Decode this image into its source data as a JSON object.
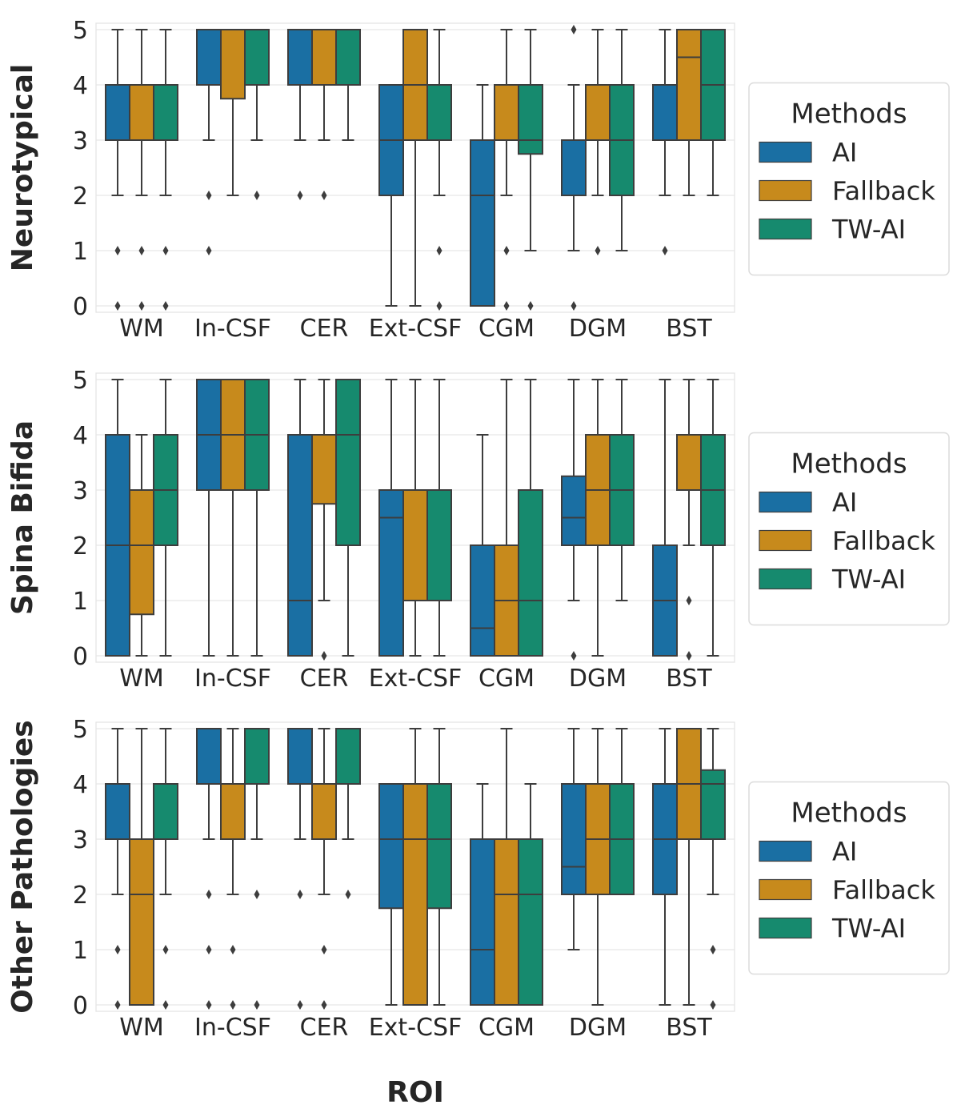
{
  "chart_data": {
    "type": "boxplot",
    "xlabel": "ROI",
    "categories": [
      "WM",
      "In-CSF",
      "CER",
      "Ext-CSF",
      "CGM",
      "DGM",
      "BST"
    ],
    "methods": [
      "AI",
      "Fallback",
      "TW-AI"
    ],
    "colors": {
      "AI": "#1a6fa3",
      "Fallback": "#c78a1c",
      "TW-AI": "#168a6e"
    },
    "ylim": [
      0,
      5
    ],
    "yticks": [
      "0",
      "1",
      "2",
      "3",
      "4",
      "5"
    ],
    "legend": {
      "title": "Methods",
      "placement": "right"
    },
    "panels": [
      {
        "title": "Neurotypical",
        "boxes": {
          "AI": [
            {
              "wl": 2,
              "q1": 3,
              "med": 3,
              "q3": 4,
              "wh": 5,
              "fl": [
                0,
                1
              ]
            },
            {
              "wl": 3,
              "q1": 4,
              "med": 5,
              "q3": 5,
              "wh": 5,
              "fl": [
                1,
                2
              ]
            },
            {
              "wl": 3,
              "q1": 4,
              "med": 5,
              "q3": 5,
              "wh": 5,
              "fl": [
                2
              ]
            },
            {
              "wl": 0,
              "q1": 2,
              "med": 3,
              "q3": 4,
              "wh": 4,
              "fl": []
            },
            {
              "wl": 0,
              "q1": 0,
              "med": 2,
              "q3": 3,
              "wh": 4,
              "fl": []
            },
            {
              "wl": 1,
              "q1": 2,
              "med": 3,
              "q3": 3,
              "wh": 4,
              "fl": [
                0,
                5
              ]
            },
            {
              "wl": 2,
              "q1": 3,
              "med": 4,
              "q3": 4,
              "wh": 5,
              "fl": [
                1
              ]
            }
          ],
          "Fallback": [
            {
              "wl": 2,
              "q1": 3,
              "med": 3,
              "q3": 4,
              "wh": 5,
              "fl": [
                0,
                1
              ]
            },
            {
              "wl": 2,
              "q1": 3.75,
              "med": 5,
              "q3": 5,
              "wh": 5,
              "fl": []
            },
            {
              "wl": 3,
              "q1": 4,
              "med": 5,
              "q3": 5,
              "wh": 5,
              "fl": [
                2
              ]
            },
            {
              "wl": 0,
              "q1": 3,
              "med": 4,
              "q3": 5,
              "wh": 5,
              "fl": []
            },
            {
              "wl": 2,
              "q1": 3,
              "med": 4,
              "q3": 4,
              "wh": 5,
              "fl": [
                0,
                1
              ]
            },
            {
              "wl": 2,
              "q1": 3,
              "med": 4,
              "q3": 4,
              "wh": 5,
              "fl": [
                1
              ]
            },
            {
              "wl": 2,
              "q1": 3,
              "med": 4.5,
              "q3": 5,
              "wh": 5,
              "fl": []
            }
          ],
          "TW-AI": [
            {
              "wl": 2,
              "q1": 3,
              "med": 3,
              "q3": 4,
              "wh": 5,
              "fl": [
                0,
                1
              ]
            },
            {
              "wl": 3,
              "q1": 4,
              "med": 5,
              "q3": 5,
              "wh": 5,
              "fl": [
                2
              ]
            },
            {
              "wl": 3,
              "q1": 4,
              "med": 5,
              "q3": 5,
              "wh": 5,
              "fl": []
            },
            {
              "wl": 2,
              "q1": 3,
              "med": 4,
              "q3": 4,
              "wh": 5,
              "fl": [
                0,
                1
              ]
            },
            {
              "wl": 1,
              "q1": 2.75,
              "med": 3,
              "q3": 4,
              "wh": 5,
              "fl": [
                0
              ]
            },
            {
              "wl": 1,
              "q1": 2,
              "med": 3,
              "q3": 4,
              "wh": 5,
              "fl": []
            },
            {
              "wl": 2,
              "q1": 3,
              "med": 4,
              "q3": 5,
              "wh": 5,
              "fl": []
            }
          ]
        }
      },
      {
        "title": "Spina Bifida",
        "boxes": {
          "AI": [
            {
              "wl": 0,
              "q1": 0,
              "med": 2,
              "q3": 4,
              "wh": 5,
              "fl": []
            },
            {
              "wl": 0,
              "q1": 3,
              "med": 4,
              "q3": 5,
              "wh": 5,
              "fl": []
            },
            {
              "wl": 0,
              "q1": 0,
              "med": 1,
              "q3": 4,
              "wh": 5,
              "fl": []
            },
            {
              "wl": 0,
              "q1": 0,
              "med": 2.5,
              "q3": 3,
              "wh": 5,
              "fl": []
            },
            {
              "wl": 0,
              "q1": 0,
              "med": 0.5,
              "q3": 2,
              "wh": 4,
              "fl": []
            },
            {
              "wl": 1,
              "q1": 2,
              "med": 2.5,
              "q3": 3.25,
              "wh": 5,
              "fl": [
                0
              ]
            },
            {
              "wl": 0,
              "q1": 0,
              "med": 1,
              "q3": 2,
              "wh": 5,
              "fl": []
            }
          ],
          "Fallback": [
            {
              "wl": 0,
              "q1": 0.75,
              "med": 2,
              "q3": 3,
              "wh": 4,
              "fl": []
            },
            {
              "wl": 0,
              "q1": 3,
              "med": 4,
              "q3": 5,
              "wh": 5,
              "fl": []
            },
            {
              "wl": 1,
              "q1": 2.75,
              "med": 4,
              "q3": 4,
              "wh": 5,
              "fl": [
                0
              ]
            },
            {
              "wl": 0,
              "q1": 1,
              "med": 3,
              "q3": 3,
              "wh": 5,
              "fl": []
            },
            {
              "wl": 0,
              "q1": 0,
              "med": 1,
              "q3": 2,
              "wh": 5,
              "fl": []
            },
            {
              "wl": 0,
              "q1": 2,
              "med": 3,
              "q3": 4,
              "wh": 5,
              "fl": []
            },
            {
              "wl": 2,
              "q1": 3,
              "med": 4,
              "q3": 4,
              "wh": 5,
              "fl": [
                0,
                1
              ]
            }
          ],
          "TW-AI": [
            {
              "wl": 0,
              "q1": 2,
              "med": 3,
              "q3": 4,
              "wh": 5,
              "fl": []
            },
            {
              "wl": 0,
              "q1": 3,
              "med": 4,
              "q3": 5,
              "wh": 5,
              "fl": []
            },
            {
              "wl": 0,
              "q1": 2,
              "med": 4,
              "q3": 5,
              "wh": 5,
              "fl": []
            },
            {
              "wl": 0,
              "q1": 1,
              "med": 3,
              "q3": 3,
              "wh": 5,
              "fl": []
            },
            {
              "wl": 0,
              "q1": 0,
              "med": 1,
              "q3": 3,
              "wh": 5,
              "fl": []
            },
            {
              "wl": 1,
              "q1": 2,
              "med": 3,
              "q3": 4,
              "wh": 5,
              "fl": []
            },
            {
              "wl": 0,
              "q1": 2,
              "med": 3,
              "q3": 4,
              "wh": 5,
              "fl": []
            }
          ]
        }
      },
      {
        "title": "Other Pathologies",
        "boxes": {
          "AI": [
            {
              "wl": 2,
              "q1": 3,
              "med": 3,
              "q3": 4,
              "wh": 5,
              "fl": [
                0,
                1
              ]
            },
            {
              "wl": 3,
              "q1": 4,
              "med": 5,
              "q3": 5,
              "wh": 5,
              "fl": [
                0,
                1,
                2
              ]
            },
            {
              "wl": 3,
              "q1": 4,
              "med": 5,
              "q3": 5,
              "wh": 5,
              "fl": [
                0,
                2
              ]
            },
            {
              "wl": 0,
              "q1": 1.75,
              "med": 3,
              "q3": 4,
              "wh": 4,
              "fl": []
            },
            {
              "wl": 0,
              "q1": 0,
              "med": 1,
              "q3": 3,
              "wh": 4,
              "fl": []
            },
            {
              "wl": 1,
              "q1": 2,
              "med": 2.5,
              "q3": 4,
              "wh": 5,
              "fl": []
            },
            {
              "wl": 0,
              "q1": 2,
              "med": 3,
              "q3": 4,
              "wh": 5,
              "fl": []
            }
          ],
          "Fallback": [
            {
              "wl": 0,
              "q1": 0,
              "med": 2,
              "q3": 3,
              "wh": 5,
              "fl": []
            },
            {
              "wl": 2,
              "q1": 3,
              "med": 4,
              "q3": 4,
              "wh": 5,
              "fl": [
                0,
                1
              ]
            },
            {
              "wl": 2,
              "q1": 3,
              "med": 4,
              "q3": 4,
              "wh": 5,
              "fl": [
                0,
                1
              ]
            },
            {
              "wl": 0,
              "q1": 0,
              "med": 3,
              "q3": 4,
              "wh": 5,
              "fl": []
            },
            {
              "wl": 0,
              "q1": 0,
              "med": 2,
              "q3": 3,
              "wh": 5,
              "fl": []
            },
            {
              "wl": 0,
              "q1": 2,
              "med": 3,
              "q3": 4,
              "wh": 5,
              "fl": []
            },
            {
              "wl": 0,
              "q1": 3,
              "med": 4,
              "q3": 5,
              "wh": 5,
              "fl": []
            }
          ],
          "TW-AI": [
            {
              "wl": 2,
              "q1": 3,
              "med": 3,
              "q3": 4,
              "wh": 5,
              "fl": [
                0,
                1
              ]
            },
            {
              "wl": 3,
              "q1": 4,
              "med": 5,
              "q3": 5,
              "wh": 5,
              "fl": [
                0,
                2
              ]
            },
            {
              "wl": 3,
              "q1": 4,
              "med": 5,
              "q3": 5,
              "wh": 5,
              "fl": [
                2
              ]
            },
            {
              "wl": 0,
              "q1": 1.75,
              "med": 3,
              "q3": 4,
              "wh": 5,
              "fl": []
            },
            {
              "wl": 0,
              "q1": 0,
              "med": 2,
              "q3": 3,
              "wh": 4,
              "fl": []
            },
            {
              "wl": 2,
              "q1": 2,
              "med": 3,
              "q3": 4,
              "wh": 5,
              "fl": []
            },
            {
              "wl": 2,
              "q1": 3,
              "med": 4,
              "q3": 4.25,
              "wh": 5,
              "fl": [
                0,
                1
              ]
            }
          ]
        }
      }
    ]
  }
}
